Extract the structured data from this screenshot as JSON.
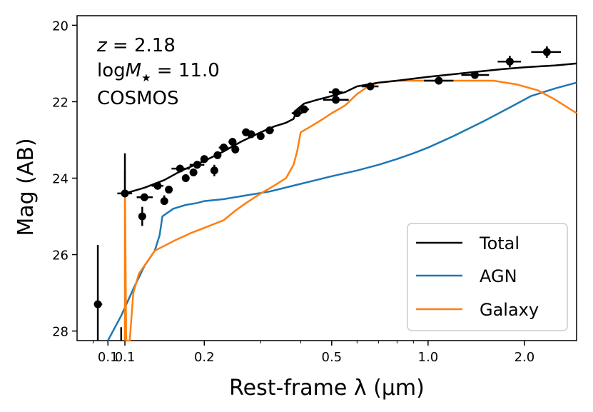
{
  "chart_data": {
    "type": "line",
    "xlabel": "Rest-frame λ (μm)",
    "ylabel": "Mag (AB)",
    "xscale": "log",
    "xlim": [
      0.0801,
      2.91
    ],
    "ylim": [
      28.25,
      19.75
    ],
    "x_tick_labels": [
      "0.1",
      "0.1",
      "0.2",
      "0.5",
      "1.0",
      "2.0"
    ],
    "x_tick_values": [
      0.1,
      0.113,
      0.2,
      0.5,
      1.0,
      2.0
    ],
    "y_ticks": [
      20,
      22,
      24,
      26,
      28
    ],
    "y_tick_labels": [
      "20",
      "22",
      "24",
      "26",
      "28"
    ],
    "annotations": {
      "line1_var": "z",
      "line1_val": " = 2.18",
      "line2_pre": "log",
      "line2_var": "M",
      "line2_sub": "★",
      "line2_val": " = 11.0",
      "line3": "COSMOS"
    },
    "legend": {
      "position": "lower-right",
      "entries": [
        "Total",
        "AGN",
        "Galaxy"
      ]
    },
    "colors": {
      "Total": "#000000",
      "AGN": "#1f77b4",
      "Galaxy": "#ff7f0e"
    },
    "series": [
      {
        "name": "Total",
        "points": [
          [
            0.113,
            24.4
          ],
          [
            0.13,
            24.25
          ],
          [
            0.15,
            24.05
          ],
          [
            0.17,
            23.8
          ],
          [
            0.2,
            23.55
          ],
          [
            0.23,
            23.3
          ],
          [
            0.26,
            23.05
          ],
          [
            0.3,
            22.8
          ],
          [
            0.33,
            22.65
          ],
          [
            0.36,
            22.55
          ],
          [
            0.38,
            22.45
          ],
          [
            0.39,
            22.2
          ],
          [
            0.41,
            22.05
          ],
          [
            0.45,
            21.95
          ],
          [
            0.5,
            21.85
          ],
          [
            0.55,
            21.75
          ],
          [
            0.6,
            21.6
          ],
          [
            0.7,
            21.5
          ],
          [
            0.8,
            21.45
          ],
          [
            1.0,
            21.35
          ],
          [
            1.3,
            21.25
          ],
          [
            1.7,
            21.15
          ],
          [
            2.0,
            21.1
          ],
          [
            2.5,
            21.05
          ],
          [
            2.91,
            21.0
          ]
        ]
      },
      {
        "name": "AGN",
        "points": [
          [
            0.1,
            28.4
          ],
          [
            0.11,
            27.6
          ],
          [
            0.12,
            26.9
          ],
          [
            0.13,
            26.3
          ],
          [
            0.14,
            25.9
          ],
          [
            0.145,
            25.5
          ],
          [
            0.148,
            25.0
          ],
          [
            0.16,
            24.8
          ],
          [
            0.175,
            24.7
          ],
          [
            0.19,
            24.65
          ],
          [
            0.2,
            24.6
          ],
          [
            0.23,
            24.55
          ],
          [
            0.27,
            24.45
          ],
          [
            0.32,
            24.35
          ],
          [
            0.4,
            24.15
          ],
          [
            0.5,
            23.95
          ],
          [
            0.6,
            23.8
          ],
          [
            0.7,
            23.65
          ],
          [
            0.8,
            23.5
          ],
          [
            0.9,
            23.35
          ],
          [
            1.0,
            23.2
          ],
          [
            1.2,
            22.9
          ],
          [
            1.5,
            22.5
          ],
          [
            1.8,
            22.15
          ],
          [
            2.1,
            21.85
          ],
          [
            2.5,
            21.65
          ],
          [
            2.91,
            21.5
          ]
        ]
      },
      {
        "name": "Galaxy",
        "points": [
          [
            0.113,
            28.4
          ],
          [
            0.113,
            23.8
          ],
          [
            0.114,
            28.4
          ],
          [
            0.117,
            28.4
          ],
          [
            0.12,
            27.0
          ],
          [
            0.125,
            26.5
          ],
          [
            0.14,
            25.9
          ],
          [
            0.16,
            25.65
          ],
          [
            0.18,
            25.45
          ],
          [
            0.2,
            25.3
          ],
          [
            0.23,
            25.1
          ],
          [
            0.25,
            24.85
          ],
          [
            0.27,
            24.65
          ],
          [
            0.3,
            24.4
          ],
          [
            0.33,
            24.2
          ],
          [
            0.36,
            24.0
          ],
          [
            0.38,
            23.65
          ],
          [
            0.39,
            23.3
          ],
          [
            0.4,
            22.8
          ],
          [
            0.43,
            22.65
          ],
          [
            0.47,
            22.45
          ],
          [
            0.5,
            22.3
          ],
          [
            0.55,
            22.1
          ],
          [
            0.6,
            21.8
          ],
          [
            0.65,
            21.6
          ],
          [
            0.7,
            21.5
          ],
          [
            0.8,
            21.45
          ],
          [
            1.0,
            21.45
          ],
          [
            1.3,
            21.45
          ],
          [
            1.6,
            21.45
          ],
          [
            1.9,
            21.55
          ],
          [
            2.2,
            21.7
          ],
          [
            2.5,
            21.95
          ],
          [
            2.91,
            22.3
          ]
        ]
      }
    ],
    "data_points": [
      {
        "x": 0.093,
        "y": 27.3,
        "ylo": 25.75,
        "yhi": 28.4,
        "xlo": 0.091,
        "xhi": 0.096
      },
      {
        "x": 0.11,
        "y": 28.4,
        "ylo": 27.9,
        "yhi": 28.4,
        "xlo": 0.11,
        "xhi": 0.11
      },
      {
        "x": 0.113,
        "y": 24.4,
        "ylo": 23.35,
        "yhi": 24.5,
        "xlo": 0.107,
        "xhi": 0.119
      },
      {
        "x": 0.128,
        "y": 25.0,
        "ylo": 24.75,
        "yhi": 25.25,
        "xlo": 0.126,
        "xhi": 0.13
      },
      {
        "x": 0.13,
        "y": 24.5,
        "ylo": 24.4,
        "yhi": 24.6,
        "xlo": 0.123,
        "xhi": 0.138
      },
      {
        "x": 0.143,
        "y": 24.2,
        "ylo": 24.1,
        "yhi": 24.3,
        "xlo": 0.137,
        "xhi": 0.149
      },
      {
        "x": 0.15,
        "y": 24.6,
        "ylo": 24.45,
        "yhi": 24.7,
        "xlo": 0.147,
        "xhi": 0.153
      },
      {
        "x": 0.155,
        "y": 24.3,
        "ylo": 24.2,
        "yhi": 24.4,
        "xlo": 0.152,
        "xhi": 0.158
      },
      {
        "x": 0.168,
        "y": 23.75,
        "ylo": 23.65,
        "yhi": 23.85,
        "xlo": 0.158,
        "xhi": 0.18
      },
      {
        "x": 0.175,
        "y": 24.0,
        "ylo": 23.9,
        "yhi": 24.1,
        "xlo": 0.172,
        "xhi": 0.178
      },
      {
        "x": 0.185,
        "y": 23.85,
        "ylo": 23.75,
        "yhi": 23.95,
        "xlo": 0.182,
        "xhi": 0.188
      },
      {
        "x": 0.19,
        "y": 23.65,
        "ylo": 23.55,
        "yhi": 23.75,
        "xlo": 0.18,
        "xhi": 0.2
      },
      {
        "x": 0.2,
        "y": 23.5,
        "ylo": 23.4,
        "yhi": 23.6,
        "xlo": 0.195,
        "xhi": 0.205
      },
      {
        "x": 0.215,
        "y": 23.8,
        "ylo": 23.65,
        "yhi": 23.95,
        "xlo": 0.21,
        "xhi": 0.22
      },
      {
        "x": 0.22,
        "y": 23.4,
        "ylo": 23.3,
        "yhi": 23.5,
        "xlo": 0.215,
        "xhi": 0.225
      },
      {
        "x": 0.23,
        "y": 23.2,
        "ylo": 23.1,
        "yhi": 23.3,
        "xlo": 0.222,
        "xhi": 0.238
      },
      {
        "x": 0.245,
        "y": 23.05,
        "ylo": 22.95,
        "yhi": 23.15,
        "xlo": 0.238,
        "xhi": 0.252
      },
      {
        "x": 0.25,
        "y": 23.25,
        "ylo": 23.15,
        "yhi": 23.35,
        "xlo": 0.245,
        "xhi": 0.255
      },
      {
        "x": 0.27,
        "y": 22.8,
        "ylo": 22.7,
        "yhi": 22.9,
        "xlo": 0.262,
        "xhi": 0.278
      },
      {
        "x": 0.28,
        "y": 22.85,
        "ylo": 22.75,
        "yhi": 22.95,
        "xlo": 0.272,
        "xhi": 0.288
      },
      {
        "x": 0.3,
        "y": 22.9,
        "ylo": 22.8,
        "yhi": 23.0,
        "xlo": 0.293,
        "xhi": 0.307
      },
      {
        "x": 0.32,
        "y": 22.75,
        "ylo": 22.65,
        "yhi": 22.85,
        "xlo": 0.31,
        "xhi": 0.33
      },
      {
        "x": 0.39,
        "y": 22.3,
        "ylo": 22.2,
        "yhi": 22.4,
        "xlo": 0.375,
        "xhi": 0.405
      },
      {
        "x": 0.41,
        "y": 22.2,
        "ylo": 22.1,
        "yhi": 22.3,
        "xlo": 0.395,
        "xhi": 0.425
      },
      {
        "x": 0.515,
        "y": 21.95,
        "ylo": 21.85,
        "yhi": 22.05,
        "xlo": 0.47,
        "xhi": 0.565
      },
      {
        "x": 0.515,
        "y": 21.75,
        "ylo": 21.65,
        "yhi": 21.85,
        "xlo": 0.49,
        "xhi": 0.54
      },
      {
        "x": 0.66,
        "y": 21.6,
        "ylo": 21.5,
        "yhi": 21.7,
        "xlo": 0.62,
        "xhi": 0.7
      },
      {
        "x": 1.08,
        "y": 21.45,
        "ylo": 21.35,
        "yhi": 21.55,
        "xlo": 0.97,
        "xhi": 1.2
      },
      {
        "x": 1.4,
        "y": 21.3,
        "ylo": 21.2,
        "yhi": 21.4,
        "xlo": 1.27,
        "xhi": 1.55
      },
      {
        "x": 1.8,
        "y": 20.95,
        "ylo": 20.8,
        "yhi": 21.1,
        "xlo": 1.65,
        "xhi": 1.95
      },
      {
        "x": 2.35,
        "y": 20.7,
        "ylo": 20.55,
        "yhi": 20.85,
        "xlo": 2.1,
        "xhi": 2.6
      }
    ]
  }
}
